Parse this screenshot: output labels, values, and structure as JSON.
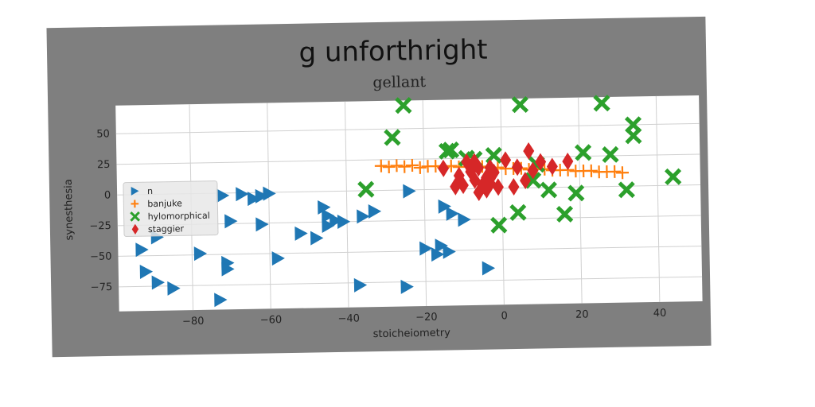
{
  "chart_data": {
    "type": "scatter",
    "title": "g unforthright",
    "subtitle": "gellant",
    "xlabel": "stoicheiometry",
    "ylabel": "synesthesia",
    "xlim": [
      -99,
      51
    ],
    "ylim": [
      -95,
      73
    ],
    "xticks": [
      -80,
      -60,
      -40,
      -20,
      0,
      20,
      40
    ],
    "yticks": [
      50,
      25,
      0,
      -25,
      -50,
      -75
    ],
    "grid": true,
    "legend_position": "center-left",
    "colors": {
      "n": "#1f77b4",
      "banjuke": "#ff7f0e",
      "hylomorphical": "#2ca02c",
      "staggier": "#d62728",
      "figure_background": "#7f7f7f",
      "plot_background": "#ffffff"
    },
    "series": [
      {
        "name": "n",
        "marker": "triangle-right",
        "points": [
          [
            -93,
            -45
          ],
          [
            -92,
            -63
          ],
          [
            -89,
            -72
          ],
          [
            -89,
            -35
          ],
          [
            -85,
            -77
          ],
          [
            -78,
            -49
          ],
          [
            -73,
            -87
          ],
          [
            -71,
            -57
          ],
          [
            -71,
            -62
          ],
          [
            -67,
            -1
          ],
          [
            -64,
            -5
          ],
          [
            -62,
            -3
          ],
          [
            -60,
            -1
          ],
          [
            -62,
            -26
          ],
          [
            -58,
            -54
          ],
          [
            -52,
            -34
          ],
          [
            -48,
            -38
          ],
          [
            -46,
            -13
          ],
          [
            -45,
            -20
          ],
          [
            -45,
            -28
          ],
          [
            -43,
            -24
          ],
          [
            -41,
            -25
          ],
          [
            -37,
            -77
          ],
          [
            -36,
            -21
          ],
          [
            -33,
            -17
          ],
          [
            -24,
            -1
          ],
          [
            -25,
            -79
          ],
          [
            -20,
            -48
          ],
          [
            -17,
            -53
          ],
          [
            -16,
            -46
          ],
          [
            -14,
            -51
          ],
          [
            -15,
            -14
          ],
          [
            -13,
            -20
          ],
          [
            -10,
            -25
          ],
          [
            -4,
            -65
          ],
          [
            -72,
            -2
          ],
          [
            -70,
            -23
          ]
        ]
      },
      {
        "name": "banjuke",
        "marker": "plus",
        "points": [
          [
            -31,
            20
          ],
          [
            -29,
            19
          ],
          [
            -27,
            20
          ],
          [
            -25,
            19
          ],
          [
            -23,
            20
          ],
          [
            -21,
            18
          ],
          [
            -19,
            19
          ],
          [
            -17,
            19
          ],
          [
            -15,
            18
          ],
          [
            -13,
            19
          ],
          [
            -11,
            18
          ],
          [
            -9,
            18
          ],
          [
            -7,
            17
          ],
          [
            -5,
            18
          ],
          [
            -3,
            17
          ],
          [
            -1,
            17
          ],
          [
            1,
            16
          ],
          [
            3,
            16
          ],
          [
            5,
            16
          ],
          [
            7,
            15
          ],
          [
            9,
            15
          ],
          [
            11,
            15
          ],
          [
            13,
            14
          ],
          [
            15,
            14
          ],
          [
            17,
            14
          ],
          [
            19,
            13
          ],
          [
            21,
            13
          ],
          [
            23,
            13
          ],
          [
            25,
            12
          ],
          [
            27,
            12
          ],
          [
            29,
            12
          ],
          [
            31,
            11
          ]
        ]
      },
      {
        "name": "hylomorphical",
        "marker": "x",
        "points": [
          [
            -25,
            69
          ],
          [
            -28,
            43
          ],
          [
            -35,
            1
          ],
          [
            -14,
            31
          ],
          [
            -13,
            32
          ],
          [
            -9,
            25
          ],
          [
            -7,
            24
          ],
          [
            -2,
            27
          ],
          [
            4,
            -20
          ],
          [
            -1,
            -30
          ],
          [
            5,
            68
          ],
          [
            9,
            19
          ],
          [
            12,
            -2
          ],
          [
            19,
            -5
          ],
          [
            21,
            28
          ],
          [
            16,
            -22
          ],
          [
            26,
            68
          ],
          [
            28,
            26
          ],
          [
            32,
            -3
          ],
          [
            34,
            41
          ],
          [
            34,
            50
          ],
          [
            44,
            7
          ],
          [
            8,
            6
          ]
        ]
      },
      {
        "name": "staggier",
        "marker": "thin-diamond",
        "points": [
          [
            -15,
            17
          ],
          [
            -12,
            2
          ],
          [
            -10,
            3
          ],
          [
            -9,
            22
          ],
          [
            -8,
            14
          ],
          [
            -7,
            7
          ],
          [
            -6,
            -3
          ],
          [
            -6,
            17
          ],
          [
            -5,
            3
          ],
          [
            -4,
            9
          ],
          [
            -3,
            4
          ],
          [
            -3,
            17
          ],
          [
            -2,
            13
          ],
          [
            -1,
            1
          ],
          [
            1,
            23
          ],
          [
            3,
            1
          ],
          [
            4,
            17
          ],
          [
            6,
            6
          ],
          [
            7,
            30
          ],
          [
            8,
            14
          ],
          [
            10,
            21
          ],
          [
            13,
            17
          ],
          [
            17,
            21
          ],
          [
            -11,
            11
          ],
          [
            -7,
            22
          ],
          [
            -4,
            -1
          ]
        ]
      }
    ]
  }
}
